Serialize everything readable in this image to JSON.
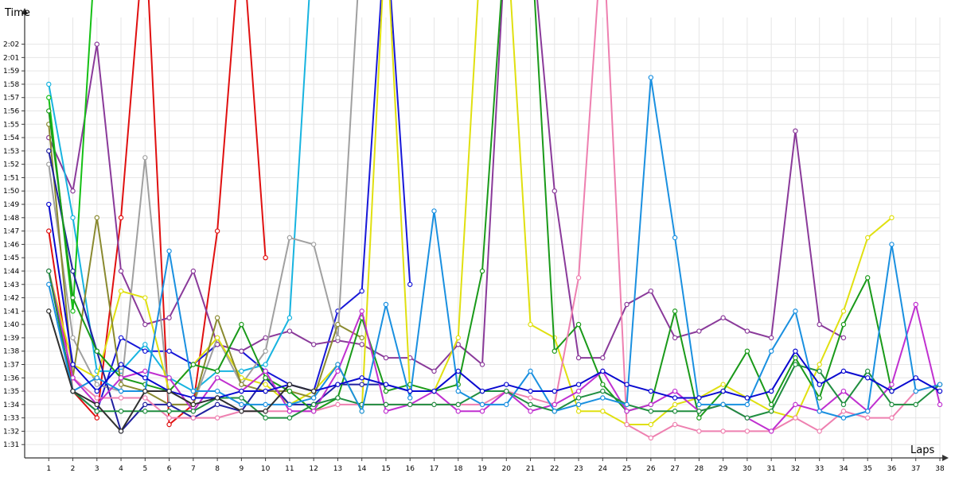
{
  "chart_data": {
    "type": "line",
    "xlabel": "Laps",
    "ylabel": "Time",
    "xlim": [
      0,
      38
    ],
    "ylim": [
      90,
      123
    ],
    "x_ticks": [
      "1",
      "2",
      "3",
      "4",
      "5",
      "6",
      "7",
      "8",
      "9",
      "10",
      "11",
      "12",
      "13",
      "14",
      "15",
      "16",
      "17",
      "18",
      "19",
      "20",
      "21",
      "22",
      "23",
      "24",
      "25",
      "26",
      "27",
      "28",
      "29",
      "30",
      "31",
      "32",
      "33",
      "34",
      "35",
      "36",
      "37",
      "38"
    ],
    "y_ticks": [
      {
        "v": 91,
        "label": "1:31"
      },
      {
        "v": 92,
        "label": "1:32"
      },
      {
        "v": 93,
        "label": "1:33"
      },
      {
        "v": 94,
        "label": "1:34"
      },
      {
        "v": 95,
        "label": "1:35"
      },
      {
        "v": 96,
        "label": "1:36"
      },
      {
        "v": 97,
        "label": "1:37"
      },
      {
        "v": 98,
        "label": "1:38"
      },
      {
        "v": 99,
        "label": "1:39"
      },
      {
        "v": 100,
        "label": "1:40"
      },
      {
        "v": 101,
        "label": "1:41"
      },
      {
        "v": 102,
        "label": "1:42"
      },
      {
        "v": 103,
        "label": "1:43"
      },
      {
        "v": 104,
        "label": "1:44"
      },
      {
        "v": 105,
        "label": "1:45"
      },
      {
        "v": 106,
        "label": "1:46"
      },
      {
        "v": 107,
        "label": "1:47"
      },
      {
        "v": 108,
        "label": "1:48"
      },
      {
        "v": 109,
        "label": "1:49"
      },
      {
        "v": 110,
        "label": "1:50"
      },
      {
        "v": 111,
        "label": "1:51"
      },
      {
        "v": 112,
        "label": "1:52"
      },
      {
        "v": 113,
        "label": "1:53"
      },
      {
        "v": 114,
        "label": "1:54"
      },
      {
        "v": 115,
        "label": "1:55"
      },
      {
        "v": 116,
        "label": "1:56"
      },
      {
        "v": 117,
        "label": "1:57"
      },
      {
        "v": 118,
        "label": "1:58"
      },
      {
        "v": 119,
        "label": "1:59"
      },
      {
        "v": 120,
        "label": "2:01"
      },
      {
        "v": 121,
        "label": "2:02"
      }
    ],
    "grid": true,
    "series": [
      {
        "color": "#e01010",
        "values": [
          107,
          95,
          93,
          108,
          130,
          92.5,
          94,
          107,
          130,
          105
        ]
      },
      {
        "color": "#1818d8",
        "values": [
          104,
          95,
          93.5,
          99,
          98,
          98,
          97,
          98.5,
          98,
          96.5,
          95.5,
          95,
          101,
          102.5,
          130,
          103
        ]
      },
      {
        "color": "#8a3a9a",
        "values": [
          114,
          110,
          121,
          104,
          100,
          100.5,
          104,
          98.5,
          98,
          99,
          99.5,
          98.5,
          98.8,
          98.5,
          97.5,
          97.5,
          96.5,
          98.5,
          97,
          130,
          130,
          110,
          97.5,
          97.5,
          101.5,
          102.5,
          99,
          99.5,
          100.5,
          99.5,
          99,
          114.5,
          100,
          99
        ]
      },
      {
        "color": "#18b4e0",
        "values": [
          118,
          108,
          96.5,
          96.5,
          98.5,
          96,
          95,
          96.5,
          96.5,
          97,
          100.5,
          130
        ]
      },
      {
        "color": "#15c015",
        "values": [
          117,
          101,
          130
        ]
      },
      {
        "color": "#a0a0a0",
        "values": [
          112,
          99,
          95.5,
          95,
          112.5,
          94,
          94,
          99,
          95.5,
          98,
          106.5,
          106,
          99,
          130
        ]
      },
      {
        "color": "#e0e010",
        "values": [
          104,
          97,
          96,
          102.5,
          102,
          95,
          97,
          99,
          96,
          95.5,
          94,
          95,
          97,
          93.5,
          130,
          95,
          95,
          99,
          130,
          130,
          100,
          99,
          93.5,
          93.5,
          92.5,
          92.5,
          94,
          94.5,
          95.5,
          94.5,
          93.5,
          93,
          97,
          101,
          106.5,
          108
        ]
      },
      {
        "color": "#8a8a30",
        "values": [
          115,
          96,
          108,
          95.5,
          95,
          94,
          94,
          100.5,
          95.5,
          95,
          95,
          94.5,
          100,
          99
        ]
      },
      {
        "color": "#2020a0",
        "values": [
          113,
          104,
          98,
          92,
          94,
          94,
          93,
          94,
          93.5,
          96,
          94,
          94,
          95.5,
          95.5,
          95.5,
          95
        ]
      },
      {
        "color": "#1a9a1a",
        "values": [
          116,
          102,
          98,
          96,
          95.5,
          95,
          97,
          96.5,
          100,
          96,
          95,
          93.5,
          94.5,
          100.5,
          95,
          95.5,
          95,
          95.5,
          104,
          130,
          130,
          98,
          100,
          95.5,
          93.5,
          94,
          101,
          93,
          95,
          98,
          94,
          97.5,
          94.5,
          100,
          103.5,
          95
        ]
      },
      {
        "color": "#ee80b0",
        "values": [
          104,
          96,
          94.5,
          94.5,
          94.5,
          93,
          93,
          93,
          93.5,
          93.5,
          93.5,
          93.5,
          94,
          94,
          94,
          94,
          94,
          94,
          94,
          95,
          94.5,
          94,
          103.5,
          130,
          92.5,
          91.5,
          92.5,
          92,
          92,
          92,
          92,
          93,
          92,
          93.5,
          93,
          93,
          95,
          95.5
        ]
      },
      {
        "color": "#c030d0",
        "values": [
          104,
          96,
          94,
          96,
          96.5,
          96,
          93.5,
          96,
          95,
          96.5,
          93.5,
          93.5,
          96.5,
          101,
          93.5,
          94,
          95,
          93.5,
          93.5,
          95,
          93.5,
          94,
          95,
          96.5,
          93.5,
          94,
          95,
          93.5,
          94,
          93,
          92,
          94,
          93.5,
          95,
          93.5,
          95.5,
          101.5,
          94
        ]
      },
      {
        "color": "#208e40",
        "values": [
          104,
          95,
          93.5,
          93.5,
          93.5,
          93.5,
          93.5,
          94.5,
          94.5,
          93,
          93,
          94,
          94.5,
          94,
          94,
          94,
          94,
          94,
          95,
          95,
          94,
          93.5,
          94.5,
          95,
          94,
          93.5,
          93.5,
          93.5,
          94,
          93,
          93.5,
          97,
          96.5,
          94,
          96.5,
          94,
          94,
          95.5
        ]
      },
      {
        "color": "#1a90e0",
        "values": [
          103,
          95,
          96,
          95,
          95,
          105.5,
          95,
          95,
          94,
          94,
          94,
          94.5,
          97,
          93.5,
          101.5,
          94.5,
          108.5,
          95,
          94,
          94,
          96.5,
          93.5,
          94,
          94.5,
          94,
          118.5,
          106.5,
          94,
          94,
          94,
          98,
          101,
          93.5,
          93,
          93.5,
          106,
          95,
          95.5
        ]
      },
      {
        "color": "#0a0ad0",
        "values": [
          109,
          97,
          95,
          97,
          96,
          95,
          94.5,
          94.5,
          95,
          95,
          95.5,
          95,
          95.5,
          96,
          95.5,
          95,
          95,
          96.5,
          95,
          95.5,
          95,
          95,
          95.5,
          96.5,
          95.5,
          95,
          94.5,
          94.5,
          95,
          94.5,
          95,
          98,
          95.5,
          96.5,
          96,
          95,
          96,
          95
        ]
      },
      {
        "color": "#303030",
        "values": [
          101,
          95,
          94,
          92,
          95,
          95,
          94,
          94.5,
          93.5,
          93.5,
          95.5,
          95
        ]
      }
    ]
  }
}
